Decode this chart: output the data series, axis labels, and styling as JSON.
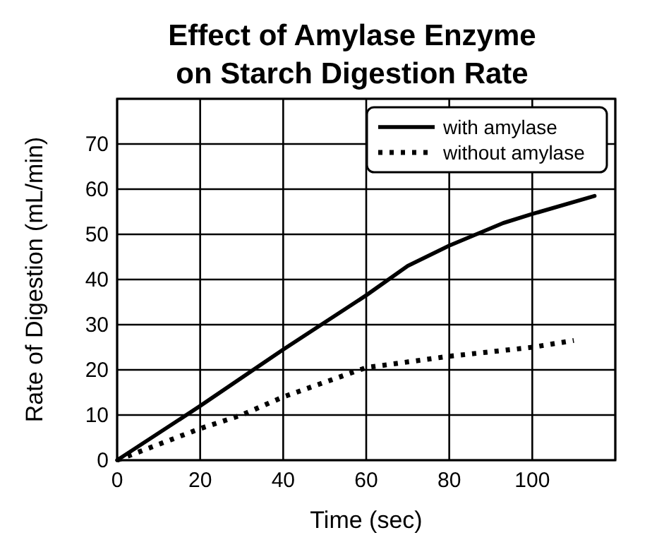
{
  "chart_data": {
    "type": "line",
    "title": "Effect of Amylase Enzyme on Starch Digestion Rate",
    "xlabel": "Time (sec)",
    "ylabel": "Rate of Digestion (mL/min)",
    "xlim": [
      0,
      120
    ],
    "ylim": [
      0,
      80
    ],
    "xticks": [
      0,
      20,
      40,
      60,
      80,
      100
    ],
    "yticks": [
      0,
      10,
      20,
      30,
      40,
      50,
      60,
      70
    ],
    "grid": true,
    "legend": "top right",
    "marker": "none",
    "series": [
      {
        "name": "with amylase",
        "color": "#000000",
        "line_style": "solid",
        "x": [
          0,
          20,
          40,
          60,
          70,
          80,
          93,
          100,
          115
        ],
        "values": [
          0,
          12,
          24.5,
          36.5,
          43,
          47.5,
          52.5,
          54.5,
          58.5
        ]
      },
      {
        "name": "without amylase",
        "color": "#000000",
        "line_style": "dotted",
        "x": [
          0,
          20,
          30,
          40,
          60,
          80,
          100,
          110
        ],
        "values": [
          0,
          7,
          10,
          14,
          20.5,
          23,
          25,
          26.5
        ]
      }
    ]
  }
}
